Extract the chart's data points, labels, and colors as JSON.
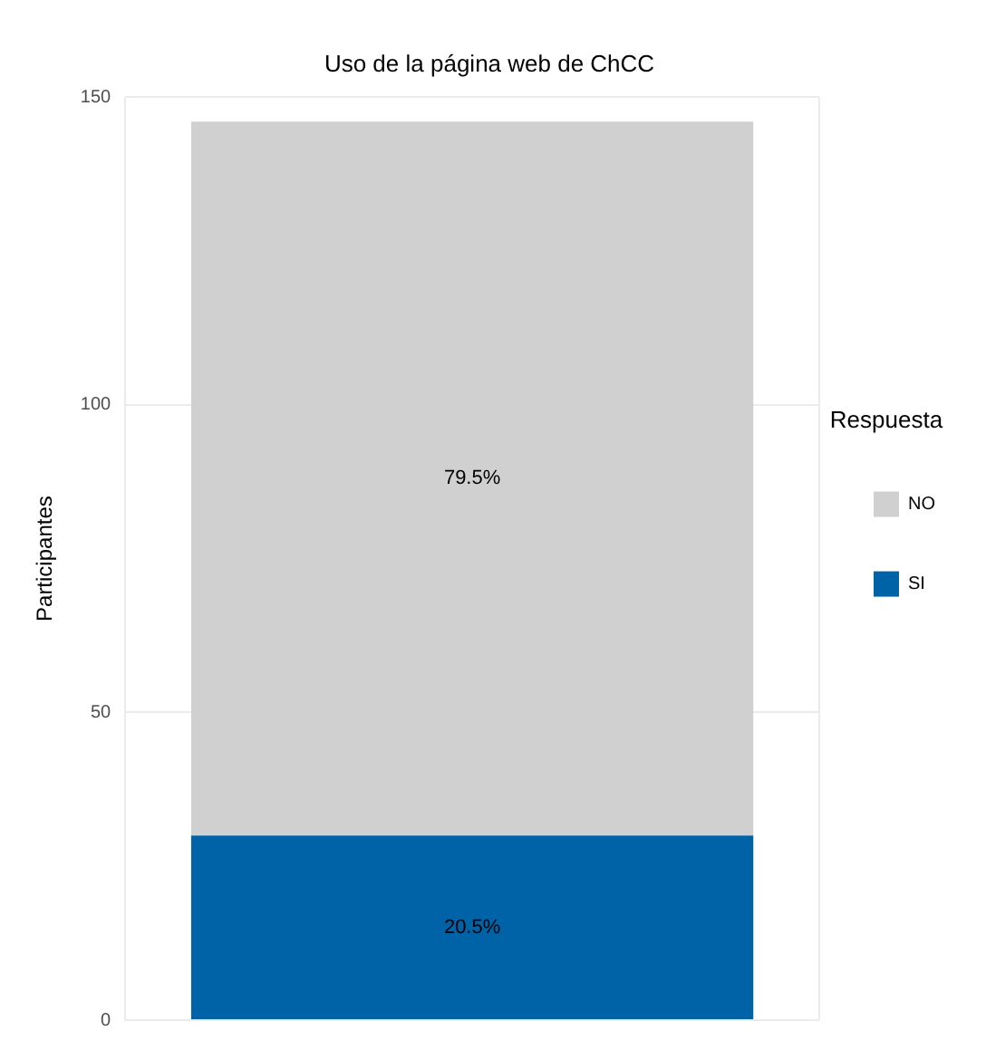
{
  "chart_data": {
    "type": "bar",
    "title": "Uso de la página web de ChCC",
    "ylabel": "Participantes",
    "legend_title": "Respuesta",
    "categories": [
      null
    ],
    "stacked": true,
    "series": [
      {
        "name": "SI",
        "color": "#0063a7",
        "values": [
          30
        ]
      },
      {
        "name": "NO",
        "color": "#d0d0d0",
        "values": [
          116
        ]
      }
    ],
    "annotations": [
      "20.5%",
      "79.5%"
    ],
    "ylim": [
      0,
      150
    ],
    "yticks": [
      0,
      50,
      100,
      150
    ],
    "grid": true,
    "legend": "right",
    "tick_labels": "y"
  }
}
